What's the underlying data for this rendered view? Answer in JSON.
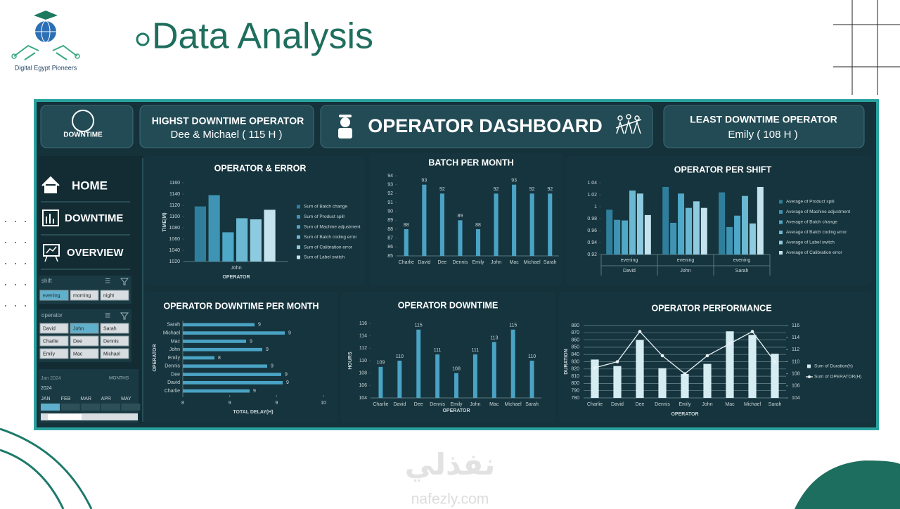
{
  "slide": {
    "title": "Data Analysis",
    "logo_text": "Digital Egypt Pioneers"
  },
  "dashboard": {
    "logo": "DOWNTIME",
    "title": "OPERATOR DASHBOARD",
    "cards": [
      {
        "title": "HIGHST DOWNTIME OPERATOR",
        "value": "Dee & Michael ( 115 H )"
      },
      {
        "title": "LEAST DOWNTIME OPERATOR",
        "value": "Emily ( 108 H )"
      }
    ],
    "nav": [
      "HOME",
      "DOWNTIME",
      "OVERVIEW"
    ],
    "slicers": [
      {
        "title": "shift",
        "items": [
          "evening",
          "morning",
          "night"
        ]
      },
      {
        "title": "operator",
        "items": [
          "David",
          "John",
          "Sarah",
          "Charlie",
          "Dee",
          "Dennis",
          "Emily",
          "Mac",
          "Michael"
        ]
      }
    ],
    "timeline": {
      "range": "Jan 2024",
      "year": "2024",
      "level": "MONTHS",
      "months": [
        "JAN",
        "FEB",
        "MAR",
        "APR",
        "MAY"
      ]
    }
  },
  "watermark": {
    "arabic": "نفذلي",
    "latin": "nafezly.com"
  },
  "chart_data": [
    {
      "type": "bar",
      "title": "OPERATOR & ERROR",
      "ylabel": "TIME(M)",
      "xlabel": "OPERATOR",
      "categories": [
        "John"
      ],
      "series": [
        {
          "name": "Sum of Batch change",
          "color": "#2f7f9c",
          "values": [
            1118
          ]
        },
        {
          "name": "Sum of Product spill",
          "color": "#3f94b4",
          "values": [
            1138
          ]
        },
        {
          "name": "Sum of Machine adjustment",
          "color": "#4ea8c8",
          "values": [
            1072
          ]
        },
        {
          "name": "Sum of Batch coding error",
          "color": "#6ab8d2",
          "values": [
            1097
          ]
        },
        {
          "name": "Sum of Calibration error",
          "color": "#8fcbe0",
          "values": [
            1095
          ]
        },
        {
          "name": "Sum of Label switch",
          "color": "#c4e3ee",
          "values": [
            1112
          ]
        }
      ],
      "ylim": [
        1020,
        1160
      ],
      "yticks": [
        1020,
        1040,
        1060,
        1080,
        1100,
        1120,
        1140,
        1160
      ],
      "grid": false,
      "legend": "right"
    },
    {
      "type": "bar",
      "title": "BATCH PER MONTH",
      "categories": [
        "Charlie",
        "David",
        "Dee",
        "Dennis",
        "Emily",
        "John",
        "Mac",
        "Michael",
        "Sarah"
      ],
      "values": [
        88,
        93,
        92,
        89,
        88,
        92,
        93,
        92,
        92
      ],
      "color": "#4aa3c4",
      "data_labels": true,
      "ylim": [
        85,
        94
      ],
      "yticks": [
        85,
        86,
        87,
        88,
        89,
        90,
        91,
        92,
        93,
        94
      ],
      "grid": false
    },
    {
      "type": "bar",
      "title": "OPERATOR PER SHIFT",
      "categories": [
        "David",
        "John",
        "Sarah"
      ],
      "subcategories": [
        "evening",
        "evening",
        "evening"
      ],
      "series": [
        {
          "name": "Average of Product spill",
          "color": "#2f7f9c",
          "values": [
            0.995,
            1.033,
            1.024
          ]
        },
        {
          "name": "Average of Machine adjustment",
          "color": "#3f94b4",
          "values": [
            0.978,
            0.973,
            0.966
          ]
        },
        {
          "name": "Average of Batch change",
          "color": "#4ea8c8",
          "values": [
            0.977,
            1.022,
            0.985
          ]
        },
        {
          "name": "Average of Batch coding error",
          "color": "#6ab8d2",
          "values": [
            1.027,
            0.998,
            1.018
          ]
        },
        {
          "name": "Average of Label switch",
          "color": "#8fcbe0",
          "values": [
            1.022,
            1.009,
            0.972
          ]
        },
        {
          "name": "Average of Calibration error",
          "color": "#c4e3ee",
          "values": [
            0.986,
            0.998,
            1.033
          ]
        }
      ],
      "ylim": [
        0.92,
        1.04
      ],
      "yticks": [
        0.92,
        0.94,
        0.96,
        0.98,
        1,
        1.02,
        1.04
      ],
      "grid": false,
      "legend": "right"
    },
    {
      "type": "bar",
      "orientation": "horizontal",
      "title": "OPERATOR DOWNTIME PER MONTH",
      "ylabel": "OPERATOR",
      "xlabel": "TOTAL DELAY(H)",
      "categories": [
        "Sarah",
        "Michael",
        "Mac",
        "John",
        "Emily",
        "Dennis",
        "Dee",
        "David",
        "Charlie"
      ],
      "values": [
        9.02,
        9.45,
        8.9,
        9.13,
        8.45,
        9.2,
        9.4,
        9.42,
        8.95
      ],
      "value_labels": [
        "9",
        "9",
        "9",
        "9",
        "8",
        "9",
        "9",
        "9",
        "9"
      ],
      "color": "#4aa3c4",
      "data_labels": true,
      "xlim": [
        8,
        10
      ],
      "xticks": [
        8,
        {
          "value": 8.667,
          "label": "9"
        },
        {
          "value": 9.333,
          "label": "9"
        },
        10
      ],
      "grid": false
    },
    {
      "type": "bar",
      "title": "OPERATOR DOWNTIME",
      "ylabel": "HOURS",
      "xlabel": "OPERATOR",
      "categories": [
        "Charlie",
        "David",
        "Dee",
        "Dennis",
        "Emily",
        "John",
        "Mac",
        "Michael",
        "Sarah"
      ],
      "values": [
        109,
        110,
        115,
        111,
        108,
        111,
        113,
        115,
        110
      ],
      "color": "#4aa3c4",
      "data_labels": true,
      "ylim": [
        104,
        116
      ],
      "yticks": [
        104,
        106,
        108,
        110,
        112,
        114,
        116
      ],
      "grid": false
    },
    {
      "type": "combo",
      "title": "OPERATOR PERFORMANCE",
      "ylabel": "DURATION",
      "xlabel": "OPERATOR",
      "categories": [
        "Charlie",
        "David",
        "Dee",
        "Dennis",
        "Emily",
        "John",
        "Mac",
        "Michael",
        "Sarah"
      ],
      "series": [
        {
          "name": "Sum of Duration(h)",
          "color": "#d6ecf3",
          "type": "bar",
          "values": [
            833,
            824,
            860,
            821,
            813,
            827,
            872,
            867,
            841
          ]
        },
        {
          "name": "Sum of OPERATOR(H)",
          "color": "#e8f1f4",
          "type": "line",
          "axis": "y2",
          "values": [
            109,
            110,
            115,
            111,
            108,
            111,
            113,
            115,
            110
          ]
        }
      ],
      "ylim": [
        780,
        880
      ],
      "yticks": [
        780,
        790,
        800,
        810,
        820,
        830,
        840,
        850,
        860,
        870,
        880
      ],
      "y2lim": [
        104,
        116
      ],
      "y2ticks": [
        104,
        106,
        108,
        110,
        112,
        114,
        116
      ],
      "grid": true,
      "legend": "right"
    }
  ]
}
